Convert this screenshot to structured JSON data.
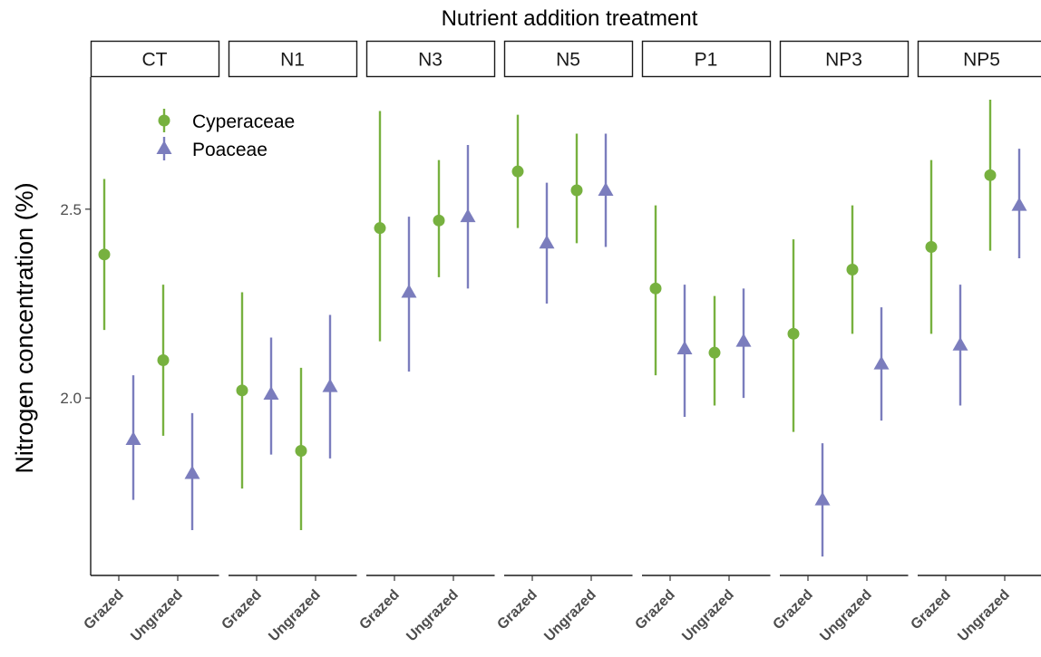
{
  "chart_data": {
    "type": "scatter",
    "title": "Nutrient addition treatment",
    "xlabel": "",
    "ylabel": "Nitrogen concentration (%)",
    "ylim": [
      1.53,
      2.85
    ],
    "yticks": [
      2.0,
      2.5
    ],
    "ytick_labels": [
      "2.0",
      "2.5"
    ],
    "grid": false,
    "legend_position": "top-left",
    "panels": [
      "CT",
      "N1",
      "N3",
      "N5",
      "P1",
      "NP3",
      "NP5"
    ],
    "categories": [
      "Grazed",
      "Ungrazed"
    ],
    "series": [
      {
        "name": "Cyperaceae",
        "marker": "circle",
        "color": "#77b13f",
        "points": [
          {
            "panel": "CT",
            "x": "Grazed",
            "y": 2.38,
            "ymin": 2.18,
            "ymax": 2.58
          },
          {
            "panel": "CT",
            "x": "Ungrazed",
            "y": 2.1,
            "ymin": 1.9,
            "ymax": 2.3
          },
          {
            "panel": "N1",
            "x": "Grazed",
            "y": 2.02,
            "ymin": 1.76,
            "ymax": 2.28
          },
          {
            "panel": "N1",
            "x": "Ungrazed",
            "y": 1.86,
            "ymin": 1.65,
            "ymax": 2.08
          },
          {
            "panel": "N3",
            "x": "Grazed",
            "y": 2.45,
            "ymin": 2.15,
            "ymax": 2.76
          },
          {
            "panel": "N3",
            "x": "Ungrazed",
            "y": 2.47,
            "ymin": 2.32,
            "ymax": 2.63
          },
          {
            "panel": "N5",
            "x": "Grazed",
            "y": 2.6,
            "ymin": 2.45,
            "ymax": 2.75
          },
          {
            "panel": "N5",
            "x": "Ungrazed",
            "y": 2.55,
            "ymin": 2.41,
            "ymax": 2.7
          },
          {
            "panel": "P1",
            "x": "Grazed",
            "y": 2.29,
            "ymin": 2.06,
            "ymax": 2.51
          },
          {
            "panel": "P1",
            "x": "Ungrazed",
            "y": 2.12,
            "ymin": 1.98,
            "ymax": 2.27
          },
          {
            "panel": "NP3",
            "x": "Grazed",
            "y": 2.17,
            "ymin": 1.91,
            "ymax": 2.42
          },
          {
            "panel": "NP3",
            "x": "Ungrazed",
            "y": 2.34,
            "ymin": 2.17,
            "ymax": 2.51
          },
          {
            "panel": "NP5",
            "x": "Grazed",
            "y": 2.4,
            "ymin": 2.17,
            "ymax": 2.63
          },
          {
            "panel": "NP5",
            "x": "Ungrazed",
            "y": 2.59,
            "ymin": 2.39,
            "ymax": 2.79
          }
        ]
      },
      {
        "name": "Poaceae",
        "marker": "triangle",
        "color": "#7b7dbd",
        "points": [
          {
            "panel": "CT",
            "x": "Grazed",
            "y": 1.89,
            "ymin": 1.73,
            "ymax": 2.06
          },
          {
            "panel": "CT",
            "x": "Ungrazed",
            "y": 1.8,
            "ymin": 1.65,
            "ymax": 1.96
          },
          {
            "panel": "N1",
            "x": "Grazed",
            "y": 2.01,
            "ymin": 1.85,
            "ymax": 2.16
          },
          {
            "panel": "N1",
            "x": "Ungrazed",
            "y": 2.03,
            "ymin": 1.84,
            "ymax": 2.22
          },
          {
            "panel": "N3",
            "x": "Grazed",
            "y": 2.28,
            "ymin": 2.07,
            "ymax": 2.48
          },
          {
            "panel": "N3",
            "x": "Ungrazed",
            "y": 2.48,
            "ymin": 2.29,
            "ymax": 2.67
          },
          {
            "panel": "N5",
            "x": "Grazed",
            "y": 2.41,
            "ymin": 2.25,
            "ymax": 2.57
          },
          {
            "panel": "N5",
            "x": "Ungrazed",
            "y": 2.55,
            "ymin": 2.4,
            "ymax": 2.7
          },
          {
            "panel": "P1",
            "x": "Grazed",
            "y": 2.13,
            "ymin": 1.95,
            "ymax": 2.3
          },
          {
            "panel": "P1",
            "x": "Ungrazed",
            "y": 2.15,
            "ymin": 2.0,
            "ymax": 2.29
          },
          {
            "panel": "NP3",
            "x": "Grazed",
            "y": 1.73,
            "ymin": 1.58,
            "ymax": 1.88
          },
          {
            "panel": "NP3",
            "x": "Ungrazed",
            "y": 2.09,
            "ymin": 1.94,
            "ymax": 2.24
          },
          {
            "panel": "NP5",
            "x": "Grazed",
            "y": 2.14,
            "ymin": 1.98,
            "ymax": 2.3
          },
          {
            "panel": "NP5",
            "x": "Ungrazed",
            "y": 2.51,
            "ymin": 2.37,
            "ymax": 2.66
          }
        ]
      }
    ]
  }
}
